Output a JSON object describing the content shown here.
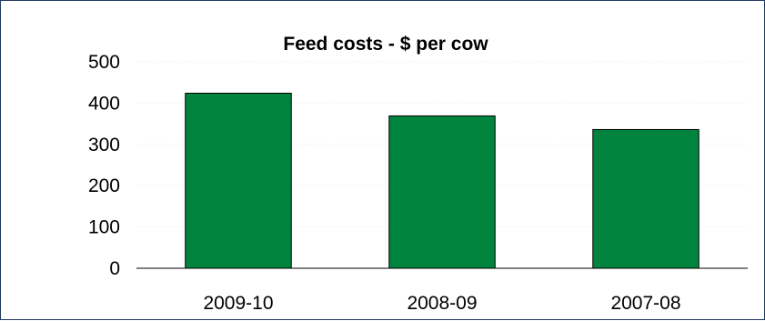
{
  "chart_data": {
    "type": "bar",
    "title": "Feed costs - $ per cow",
    "categories": [
      "2009-10",
      "2008-09",
      "2007-08"
    ],
    "values": [
      424,
      369,
      336
    ],
    "ylim": [
      0,
      500
    ],
    "yticks": [
      "0",
      "100",
      "200",
      "300",
      "400",
      "500"
    ],
    "xlabel": "",
    "ylabel": "",
    "grid": true,
    "legend": "none",
    "bar_color": "#00843d"
  }
}
